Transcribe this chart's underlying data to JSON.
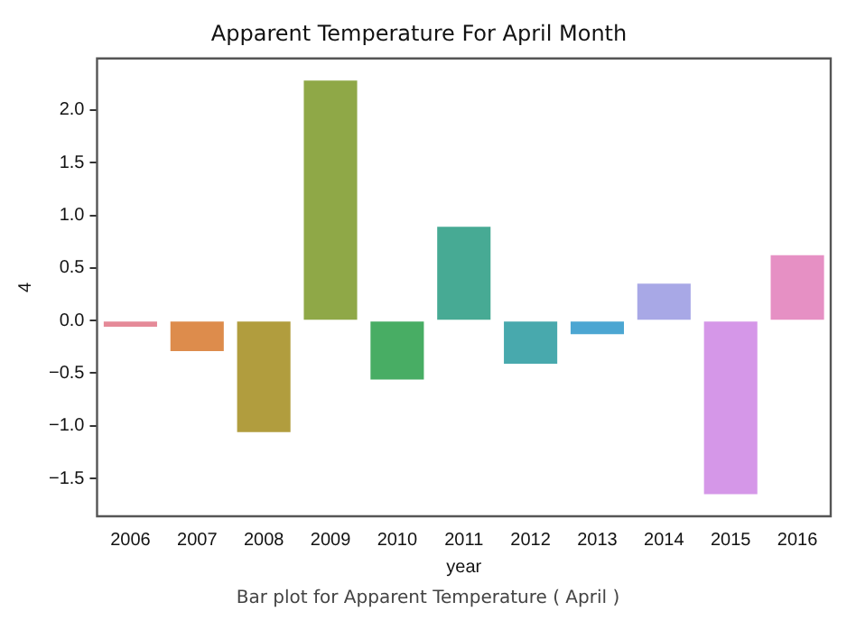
{
  "chart_data": {
    "type": "bar",
    "title": "Apparent Temperature For April Month",
    "xlabel": "year",
    "ylabel": "4",
    "categories": [
      "2006",
      "2007",
      "2008",
      "2009",
      "2010",
      "2011",
      "2012",
      "2013",
      "2014",
      "2015",
      "2016"
    ],
    "values": [
      -0.06,
      -0.29,
      -1.06,
      2.28,
      -0.56,
      0.89,
      -0.41,
      -0.13,
      0.35,
      -1.65,
      0.62
    ],
    "colors": [
      "#e58a98",
      "#dd8c4c",
      "#b19d3e",
      "#8fa847",
      "#48ad64",
      "#47aa94",
      "#48a9ad",
      "#4ca6d2",
      "#a8a8e6",
      "#d597e8",
      "#e690c4"
    ],
    "ylim": [
      -1.86,
      2.49
    ],
    "yticks": [
      {
        "value": -1.5,
        "label": "−1.5"
      },
      {
        "value": -1,
        "label": "−1.0"
      },
      {
        "value": -0.5,
        "label": "−0.5"
      },
      {
        "value": 0,
        "label": "0.0"
      },
      {
        "value": 0.5,
        "label": "0.5"
      },
      {
        "value": 1,
        "label": "1.0"
      },
      {
        "value": 1.5,
        "label": "1.5"
      },
      {
        "value": 2,
        "label": "2.0"
      }
    ],
    "annotations": [
      "Bar plot for Apparent Temperature ( April )"
    ]
  }
}
